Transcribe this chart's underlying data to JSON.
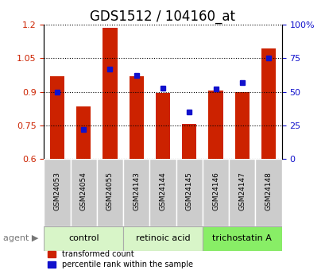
{
  "title": "GDS1512 / 104160_at",
  "categories": [
    "GSM24053",
    "GSM24054",
    "GSM24055",
    "GSM24143",
    "GSM24144",
    "GSM24145",
    "GSM24146",
    "GSM24147",
    "GSM24148"
  ],
  "red_values": [
    0.97,
    0.835,
    1.185,
    0.97,
    0.895,
    0.755,
    0.905,
    0.9,
    1.095
  ],
  "blue_values": [
    50,
    22,
    67,
    62,
    53,
    35,
    52,
    57,
    75
  ],
  "ylim_left": [
    0.6,
    1.2
  ],
  "ylim_right": [
    0,
    100
  ],
  "yticks_left": [
    0.6,
    0.75,
    0.9,
    1.05,
    1.2
  ],
  "yticks_right": [
    0,
    25,
    50,
    75,
    100
  ],
  "ytick_labels_right": [
    "0",
    "25",
    "50",
    "75",
    "100%"
  ],
  "groups": [
    {
      "label": "control",
      "indices": [
        0,
        1,
        2
      ],
      "color": "#d8f5c8"
    },
    {
      "label": "retinoic acid",
      "indices": [
        3,
        4,
        5
      ],
      "color": "#d8f5c8"
    },
    {
      "label": "trichostatin A",
      "indices": [
        6,
        7,
        8
      ],
      "color": "#88ee66"
    }
  ],
  "red_color": "#cc2200",
  "blue_color": "#1111cc",
  "bar_width": 0.55,
  "title_fontsize": 12,
  "legend_red": "transformed count",
  "legend_blue": "percentile rank within the sample"
}
